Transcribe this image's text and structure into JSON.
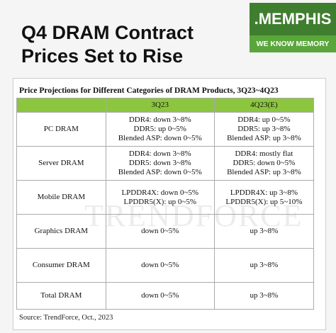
{
  "header": {
    "title_lines": [
      "Q4 DRAM Contract",
      "Prices Set to Rise"
    ],
    "logo": ".MEMPHIS",
    "tagline": "WE KNOW MEMORY"
  },
  "table": {
    "title": "Price Projections for Different Categories of DRAM Products, 3Q23~4Q23",
    "columns": [
      "3Q23",
      "4Q23(E)"
    ],
    "rows": [
      {
        "label": "PC DRAM",
        "q3": [
          "DDR4: down 3~8%",
          "DDR5: up 0~5%",
          "Blended ASP: down 0~5%"
        ],
        "q4": [
          "DDR4: up 0~5%",
          "DDR5: up 3~8%",
          "Blended ASP: up 3~8%"
        ]
      },
      {
        "label": "Server DRAM",
        "q3": [
          "DDR4: down 3~8%",
          "DDR5: down 3~8%",
          "Blended ASP: down 0~5%"
        ],
        "q4": [
          "DDR4: mostly flat",
          "DDR5: down 0~5%",
          "Blended ASP: up 3~8%"
        ]
      },
      {
        "label": "Mobile DRAM",
        "q3": [
          "LPDDR4X: down 0~5%",
          "LPDDR5(X): up 0~5%"
        ],
        "q4": [
          "LPDDR4X: up 3~8%",
          "LPDDR5(X): up 5~10%"
        ]
      },
      {
        "label": "Graphics DRAM",
        "q3": [
          "down 0~5%"
        ],
        "q4": [
          "up 3~8%"
        ]
      },
      {
        "label": "Consumer DRAM",
        "q3": [
          "down 0~5%"
        ],
        "q4": [
          "up 3~8%"
        ]
      },
      {
        "label": "Total DRAM",
        "q3": [
          "down 0~5%"
        ],
        "q4": [
          "up 3~8%"
        ]
      }
    ],
    "watermark": "TRENDFORCE",
    "source": "Source: TrendForce, Oct., 2023"
  }
}
